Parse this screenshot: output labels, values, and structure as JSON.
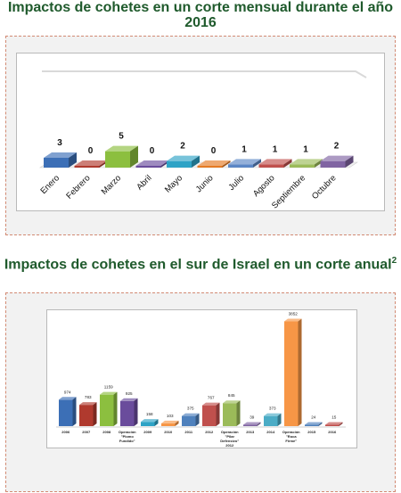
{
  "titles": {
    "monthly": "Impactos de cohetes en un corte mensual durante el año 2016",
    "annual": "Impactos de cohetes en el sur de Israel en un corte anual",
    "annual_sup": "2"
  },
  "colors": {
    "title": "#1f5a2c",
    "panel_border": "#d28a73",
    "panel_bg": "#f2f2f2"
  },
  "chart_data": [
    {
      "type": "bar",
      "title": "Impactos de cohetes en un corte mensual durante el año 2016",
      "categories": [
        "Enero",
        "Febrero",
        "Marzo",
        "Abril",
        "Mayo",
        "Junio",
        "Julio",
        "Agosto",
        "Septiembre",
        "Octubre"
      ],
      "values": [
        3,
        0,
        5,
        0,
        2,
        0,
        1,
        1,
        1,
        2
      ],
      "value_labels": [
        "3",
        "0",
        "5",
        "0",
        "2",
        "0",
        "1",
        "1",
        "1",
        "2"
      ],
      "colors": [
        "#3c6fb6",
        "#b03a2e",
        "#8cbf3f",
        "#6a4c9c",
        "#2ea3c6",
        "#e57b24",
        "#5b86c5",
        "#c0504d",
        "#9bbb59",
        "#8064a2"
      ],
      "ylim": [
        0,
        30
      ],
      "grid": false,
      "legend": "none"
    },
    {
      "type": "bar",
      "title": "Impactos de cohetes en el sur de Israel en un corte anual",
      "categories": [
        [
          "2006"
        ],
        [
          "2007"
        ],
        [
          "2008"
        ],
        [
          "Operación",
          "\"Plomo",
          "Fundido\""
        ],
        [
          "2009"
        ],
        [
          "2010"
        ],
        [
          "2011"
        ],
        [
          "2012"
        ],
        [
          "Operación",
          "\"Pilar",
          "Defensivo\"",
          "2012"
        ],
        [
          "2013"
        ],
        [
          "2014"
        ],
        [
          "Operación",
          "\"Roca",
          "Firme\""
        ],
        [
          "2015"
        ],
        [
          "2016"
        ]
      ],
      "values": [
        974,
        783,
        1159,
        925,
        158,
        103,
        375,
        767,
        845,
        39,
        373,
        3852,
        24,
        15
      ],
      "value_labels": [
        "974",
        "783",
        "1159",
        "925",
        "158",
        "103",
        "375",
        "767",
        "845",
        "39",
        "373",
        "3852",
        "24",
        "15"
      ],
      "colors": [
        "#3c6fb6",
        "#b03a2e",
        "#8cbf3f",
        "#6a4c9c",
        "#2ea3c6",
        "#f79646",
        "#4f81bd",
        "#c0504d",
        "#9bbb59",
        "#8064a2",
        "#4bacc6",
        "#f79646",
        "#4f81bd",
        "#c0504d"
      ],
      "ylim": [
        0,
        4000
      ],
      "grid": false,
      "legend": "none"
    }
  ]
}
